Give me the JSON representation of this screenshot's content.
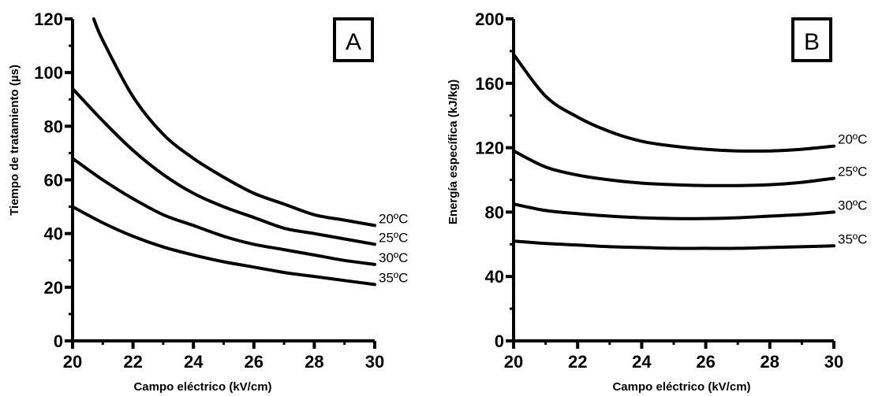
{
  "chart_data": [
    {
      "type": "line",
      "panel": "A",
      "xlabel": "Campo eléctrico (kV/cm)",
      "ylabel": "Tiempo de tratamiento (µs)",
      "xlim": [
        20,
        30
      ],
      "ylim": [
        0,
        120
      ],
      "x_ticks": [
        20,
        22,
        24,
        26,
        28,
        30
      ],
      "y_ticks": [
        0,
        20,
        40,
        60,
        80,
        100,
        120
      ],
      "grid": false,
      "legend": "inline labels at right end of each curve",
      "series": [
        {
          "name": "20ºC",
          "x": [
            20.7,
            21,
            22,
            23,
            24,
            25,
            26,
            27,
            28,
            29,
            30
          ],
          "y": [
            120,
            112,
            91,
            77,
            68,
            61,
            55,
            51,
            47,
            45,
            43
          ]
        },
        {
          "name": "25ºC",
          "x": [
            20,
            21,
            22,
            23,
            24,
            25,
            26,
            27,
            28,
            29,
            30
          ],
          "y": [
            94,
            82,
            71,
            62,
            55,
            50,
            46,
            42,
            40,
            38,
            36
          ]
        },
        {
          "name": "30ºC",
          "x": [
            20,
            21,
            22,
            23,
            24,
            25,
            26,
            27,
            28,
            29,
            30
          ],
          "y": [
            68,
            60,
            53,
            47,
            43,
            39,
            36,
            34,
            32,
            30,
            28.5
          ]
        },
        {
          "name": "35ºC",
          "x": [
            20,
            21,
            22,
            23,
            24,
            25,
            26,
            27,
            28,
            29,
            30
          ],
          "y": [
            50,
            44,
            39,
            35,
            32,
            29.5,
            27.5,
            25.5,
            24,
            22.5,
            21
          ]
        }
      ]
    },
    {
      "type": "line",
      "panel": "B",
      "xlabel": "Campo eléctrico (kV/cm)",
      "ylabel": "Energía específica (kJ/kg)",
      "xlim": [
        20,
        30
      ],
      "ylim": [
        0,
        200
      ],
      "x_ticks": [
        20,
        22,
        24,
        26,
        28,
        30
      ],
      "y_ticks": [
        0,
        40,
        80,
        120,
        160,
        200
      ],
      "grid": false,
      "legend": "inline labels at right end of each curve",
      "series": [
        {
          "name": "20ºC",
          "x": [
            20,
            21,
            22,
            23,
            24,
            25,
            26,
            27,
            28,
            29,
            30
          ],
          "y": [
            178,
            152,
            139,
            130,
            124,
            121,
            119,
            118,
            118,
            119,
            121
          ]
        },
        {
          "name": "25ºC",
          "x": [
            20,
            21,
            22,
            23,
            24,
            25,
            26,
            27,
            28,
            29,
            30
          ],
          "y": [
            118,
            108,
            103,
            100,
            98,
            97,
            96.5,
            96.5,
            97,
            98.5,
            101
          ]
        },
        {
          "name": "30ºC",
          "x": [
            20,
            21,
            22,
            23,
            24,
            25,
            26,
            27,
            28,
            29,
            30
          ],
          "y": [
            85,
            81,
            79,
            77.5,
            76.5,
            76,
            76,
            76.5,
            77.5,
            78.5,
            80
          ]
        },
        {
          "name": "35ºC",
          "x": [
            20,
            21,
            22,
            23,
            24,
            25,
            26,
            27,
            28,
            29,
            30
          ],
          "y": [
            62,
            60.5,
            59.5,
            58.5,
            58,
            57.5,
            57.5,
            57.5,
            58,
            58.5,
            59
          ]
        }
      ]
    }
  ]
}
